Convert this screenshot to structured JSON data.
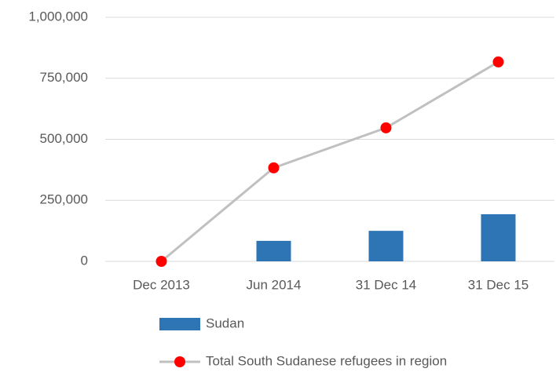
{
  "chart_data": {
    "type": "combo",
    "categories": [
      "Dec 2013",
      "Jun 2014",
      "31 Dec 14",
      "31 Dec 15"
    ],
    "series": [
      {
        "name": "Sudan",
        "type": "bar",
        "color": "#2e75b6",
        "values": [
          null,
          84000,
          125000,
          193000
        ]
      },
      {
        "name": "Total South Sudanese refugees in region",
        "type": "line",
        "color": "#c0c0c0",
        "marker_color": "#ff0000",
        "values": [
          0,
          383000,
          547000,
          817000
        ]
      }
    ],
    "ylim": [
      0,
      1000000
    ],
    "yticks": [
      0,
      {
        "value": 250000,
        "label": "250,000"
      },
      {
        "value": 500000,
        "label": "500,000"
      },
      {
        "value": 750000,
        "label": "750,000"
      },
      {
        "value": 1000000,
        "label": "1,000,000"
      }
    ],
    "grid": true,
    "legend": "bottom"
  }
}
